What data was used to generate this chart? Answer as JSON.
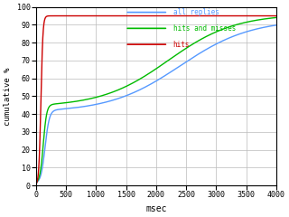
{
  "title": "",
  "xlabel": "msec",
  "ylabel": "cumulative %",
  "xlim": [
    0,
    4000
  ],
  "ylim": [
    0,
    100
  ],
  "xticks": [
    0,
    500,
    1000,
    1500,
    2000,
    2500,
    3000,
    3500,
    4000
  ],
  "yticks": [
    0,
    10,
    20,
    30,
    40,
    50,
    60,
    70,
    80,
    90,
    100
  ],
  "legend": [
    {
      "label": "all replies",
      "color": "#5599ff"
    },
    {
      "label": "hits and misses",
      "color": "#00bb00"
    },
    {
      "label": "hits",
      "color": "#cc0000"
    }
  ],
  "background_color": "#ffffff",
  "grid_color": "#bbbbbb"
}
